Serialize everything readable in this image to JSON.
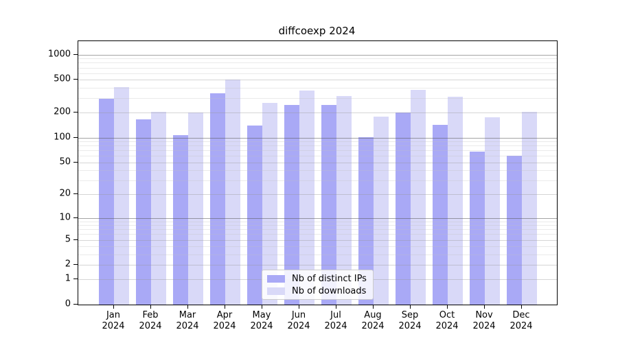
{
  "title": "diffcoexp 2024",
  "chart_data": {
    "type": "bar",
    "title": "diffcoexp 2024",
    "xlabel": "",
    "ylabel": "",
    "categories": [
      "Jan 2024",
      "Feb 2024",
      "Mar 2024",
      "Apr 2024",
      "May 2024",
      "Jun 2024",
      "Jul 2024",
      "Aug 2024",
      "Sep 2024",
      "Oct 2024",
      "Nov 2024",
      "Dec 2024"
    ],
    "series": [
      {
        "name": "Nb of distinct IPs",
        "color": "#a9a9f6",
        "values": [
          297,
          165,
          108,
          342,
          140,
          250,
          250,
          102,
          200,
          143,
          68,
          60
        ]
      },
      {
        "name": "Nb of downloads",
        "color": "#d9d9f8",
        "values": [
          410,
          207,
          203,
          505,
          265,
          370,
          320,
          180,
          378,
          310,
          177,
          207
        ]
      }
    ],
    "y_axis": {
      "scale": "log1p",
      "ticks": [
        0,
        1,
        2,
        5,
        10,
        20,
        50,
        100,
        200,
        500,
        1000
      ],
      "range_top": 1460
    },
    "grid": true,
    "legend_position": "bottom-center"
  }
}
